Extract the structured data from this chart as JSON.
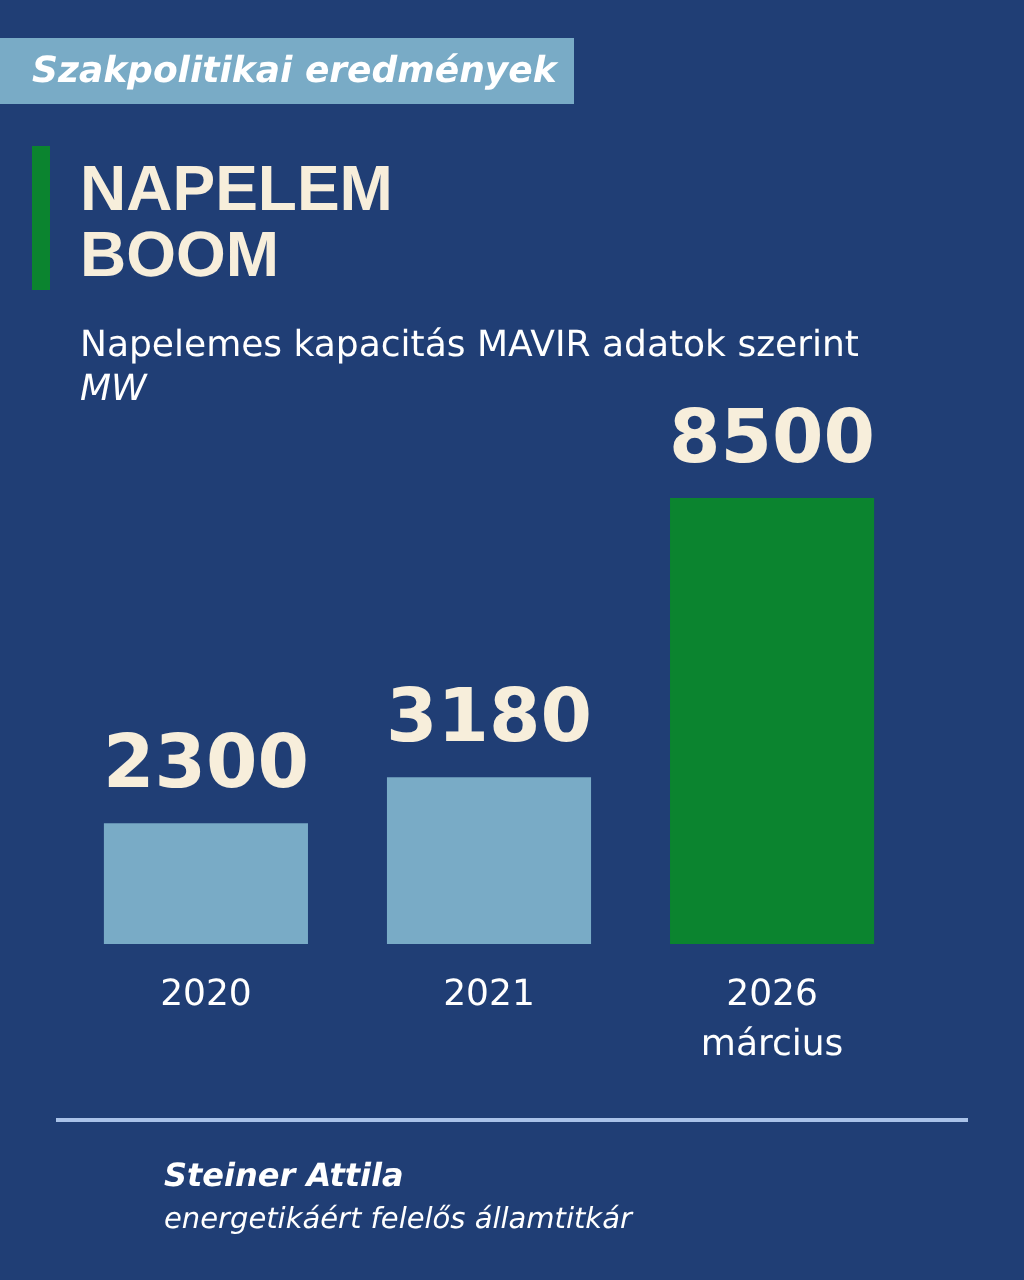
{
  "chart_data": {
    "type": "bar",
    "title": "NAPELEM BOOM",
    "subtitle": "Napelemes kapacitás MAVIR adatok szerint",
    "ylabel": "MW",
    "annotations": [
      "Szakpolitikai eredmények",
      "Steiner Attila",
      "energetikáért felelős államtitkár"
    ],
    "categories": [
      "2020",
      "2021",
      "2026\nmárcius"
    ],
    "values": [
      2300,
      3180,
      8500
    ],
    "colors": [
      "#79abc6",
      "#79abc6",
      "#0b842f"
    ],
    "data_labels": true
  }
}
